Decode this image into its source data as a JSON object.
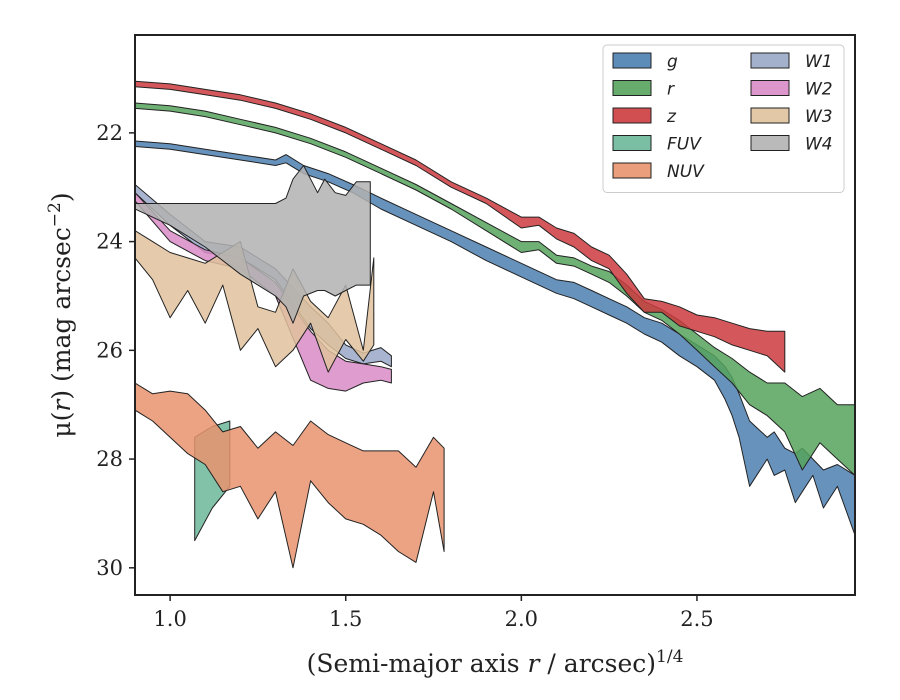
{
  "chart_data": {
    "type": "area",
    "xlabel": {
      "prefix": "(Semi-major axis ",
      "var": "r",
      "suffix": " / arcsec)",
      "sup": "1/4"
    },
    "ylabel": {
      "prefix": "μ(",
      "var": "r",
      "suffix": ") (mag arcsec",
      "sup": "−2",
      "close": ")"
    },
    "xlim": [
      0.9,
      2.95
    ],
    "ylim": [
      30.5,
      20.2
    ],
    "y_inverted": true,
    "xticks": [
      {
        "v": 1.0,
        "label": "1.0"
      },
      {
        "v": 1.5,
        "label": "1.5"
      },
      {
        "v": 2.0,
        "label": "2.0"
      },
      {
        "v": 2.5,
        "label": "2.5"
      }
    ],
    "yticks": [
      {
        "v": 22,
        "label": "22"
      },
      {
        "v": 24,
        "label": "24"
      },
      {
        "v": 26,
        "label": "26"
      },
      {
        "v": 28,
        "label": "28"
      },
      {
        "v": 30,
        "label": "30"
      }
    ],
    "legend_position": "top-right",
    "legend_columns": 2,
    "series": [
      {
        "name": "g",
        "color": "#4c7fb0",
        "x": [
          0.9,
          1.0,
          1.1,
          1.2,
          1.3,
          1.33,
          1.38,
          1.45,
          1.52,
          1.6,
          1.7,
          1.8,
          1.9,
          2.0,
          2.1,
          2.15,
          2.2,
          2.25,
          2.3,
          2.35,
          2.4,
          2.45,
          2.5,
          2.55,
          2.58,
          2.6,
          2.62,
          2.65,
          2.7,
          2.72,
          2.75,
          2.78,
          2.8,
          2.83,
          2.86,
          2.9,
          2.95
        ],
        "top": [
          22.15,
          22.2,
          22.3,
          22.4,
          22.5,
          22.4,
          22.6,
          22.75,
          22.95,
          23.2,
          23.5,
          23.8,
          24.1,
          24.4,
          24.7,
          24.75,
          24.9,
          25.05,
          25.2,
          25.4,
          25.5,
          25.7,
          25.9,
          26.1,
          26.3,
          26.5,
          26.8,
          27.3,
          27.6,
          27.5,
          27.8,
          27.9,
          27.8,
          28.0,
          28.2,
          28.1,
          28.3
        ],
        "bottom": [
          22.25,
          22.3,
          22.4,
          22.5,
          22.6,
          22.55,
          22.75,
          22.9,
          23.1,
          23.4,
          23.7,
          24.0,
          24.35,
          24.65,
          24.95,
          25.05,
          25.2,
          25.35,
          25.5,
          25.7,
          25.85,
          26.1,
          26.3,
          26.55,
          26.9,
          27.2,
          27.6,
          28.5,
          28.0,
          28.3,
          28.2,
          28.8,
          28.6,
          28.3,
          28.9,
          28.5,
          29.4
        ]
      },
      {
        "name": "r",
        "color": "#56a35c",
        "x": [
          0.9,
          1.0,
          1.1,
          1.2,
          1.3,
          1.4,
          1.5,
          1.6,
          1.7,
          1.8,
          1.9,
          2.0,
          2.05,
          2.1,
          2.15,
          2.2,
          2.25,
          2.3,
          2.35,
          2.4,
          2.45,
          2.5,
          2.55,
          2.6,
          2.65,
          2.7,
          2.75,
          2.8,
          2.85,
          2.9,
          2.95
        ],
        "top": [
          21.45,
          21.5,
          21.6,
          21.75,
          21.9,
          22.1,
          22.35,
          22.65,
          22.95,
          23.3,
          23.65,
          24.0,
          24.0,
          24.25,
          24.3,
          24.45,
          24.55,
          24.8,
          25.1,
          25.25,
          25.45,
          25.7,
          25.95,
          26.15,
          26.4,
          26.6,
          26.6,
          26.85,
          26.7,
          27.0,
          27.0
        ],
        "bottom": [
          21.55,
          21.6,
          21.7,
          21.85,
          22.0,
          22.2,
          22.45,
          22.75,
          23.05,
          23.4,
          23.8,
          24.2,
          24.15,
          24.4,
          24.45,
          24.6,
          24.75,
          25.0,
          25.3,
          25.45,
          25.7,
          26.0,
          26.3,
          26.6,
          27.0,
          27.2,
          27.5,
          28.2,
          27.7,
          28.0,
          28.3
        ]
      },
      {
        "name": "z",
        "color": "#cc3b3e",
        "x": [
          0.9,
          1.0,
          1.1,
          1.2,
          1.3,
          1.4,
          1.5,
          1.6,
          1.7,
          1.8,
          1.9,
          2.0,
          2.05,
          2.1,
          2.15,
          2.2,
          2.25,
          2.3,
          2.35,
          2.4,
          2.45,
          2.5,
          2.55,
          2.6,
          2.65,
          2.7,
          2.75
        ],
        "top": [
          21.05,
          21.1,
          21.2,
          21.3,
          21.45,
          21.65,
          21.9,
          22.2,
          22.5,
          22.9,
          23.2,
          23.55,
          23.55,
          23.75,
          23.85,
          24.1,
          24.25,
          24.6,
          25.05,
          25.1,
          25.2,
          25.35,
          25.4,
          25.5,
          25.6,
          25.65,
          25.65
        ],
        "bottom": [
          21.15,
          21.2,
          21.3,
          21.4,
          21.55,
          21.75,
          22.0,
          22.3,
          22.6,
          23.0,
          23.3,
          23.75,
          23.7,
          23.95,
          24.1,
          24.35,
          24.5,
          24.95,
          25.3,
          25.3,
          25.55,
          25.65,
          25.75,
          25.9,
          26.0,
          26.1,
          26.4
        ]
      },
      {
        "name": "FUV",
        "color": "#6cb79a",
        "x": [
          1.07,
          1.12,
          1.17
        ],
        "top": [
          27.6,
          27.4,
          27.3
        ],
        "bottom": [
          29.5,
          28.9,
          28.5
        ]
      },
      {
        "name": "NUV",
        "color": "#e8936e",
        "x": [
          0.9,
          0.95,
          1.0,
          1.05,
          1.1,
          1.15,
          1.2,
          1.25,
          1.3,
          1.35,
          1.4,
          1.45,
          1.5,
          1.55,
          1.6,
          1.65,
          1.7,
          1.75,
          1.78
        ],
        "top": [
          26.6,
          26.8,
          26.75,
          26.8,
          27.1,
          27.5,
          27.4,
          27.8,
          27.5,
          27.75,
          27.3,
          27.55,
          27.7,
          27.85,
          27.85,
          27.85,
          28.15,
          27.6,
          27.8
        ],
        "bottom": [
          27.1,
          27.3,
          27.6,
          27.9,
          28.1,
          28.6,
          28.5,
          29.1,
          28.6,
          30.0,
          28.4,
          28.8,
          29.1,
          29.2,
          29.4,
          29.7,
          29.9,
          28.6,
          29.7
        ]
      },
      {
        "name": "W1",
        "color": "#9aa8c8",
        "x": [
          0.9,
          1.0,
          1.1,
          1.2,
          1.3,
          1.4,
          1.45,
          1.5,
          1.55,
          1.6,
          1.63
        ],
        "top": [
          22.95,
          23.5,
          24.0,
          24.1,
          24.5,
          25.2,
          25.5,
          25.9,
          26.05,
          25.95,
          26.1
        ],
        "bottom": [
          23.1,
          23.7,
          24.2,
          24.3,
          24.7,
          25.6,
          25.9,
          26.15,
          26.25,
          26.2,
          26.3
        ]
      },
      {
        "name": "W2",
        "color": "#d98bc7",
        "x": [
          0.9,
          1.0,
          1.1,
          1.2,
          1.3,
          1.4,
          1.45,
          1.5,
          1.55,
          1.6,
          1.63
        ],
        "top": [
          23.1,
          23.8,
          24.15,
          24.3,
          24.75,
          25.65,
          26.0,
          26.2,
          26.25,
          26.3,
          26.35
        ],
        "bottom": [
          23.25,
          24.0,
          24.35,
          24.5,
          25.0,
          26.55,
          26.7,
          26.75,
          26.6,
          26.55,
          26.6
        ]
      },
      {
        "name": "W3",
        "color": "#e0c29d",
        "x": [
          0.9,
          0.95,
          1.0,
          1.05,
          1.1,
          1.15,
          1.2,
          1.25,
          1.3,
          1.35,
          1.4,
          1.45,
          1.5,
          1.55,
          1.58
        ],
        "top": [
          23.8,
          24.0,
          24.2,
          24.3,
          24.4,
          24.2,
          24.0,
          25.2,
          25.3,
          24.5,
          25.1,
          25.4,
          24.8,
          26.0,
          24.3
        ],
        "bottom": [
          24.3,
          24.7,
          25.4,
          24.9,
          25.5,
          24.8,
          26.0,
          25.6,
          26.3,
          26.0,
          25.5,
          26.4,
          25.8,
          26.2,
          25.9
        ]
      },
      {
        "name": "W4",
        "color": "#b2b2b2",
        "x": [
          0.9,
          1.0,
          1.1,
          1.2,
          1.3,
          1.33,
          1.35,
          1.38,
          1.42,
          1.44,
          1.47,
          1.5,
          1.53,
          1.57
        ],
        "top": [
          23.3,
          23.3,
          23.3,
          23.3,
          23.3,
          23.2,
          22.85,
          22.6,
          23.1,
          22.85,
          23.1,
          23.15,
          22.9,
          22.9
        ],
        "bottom": [
          23.4,
          23.7,
          24.1,
          24.6,
          25.0,
          25.2,
          25.5,
          25.0,
          24.9,
          24.9,
          25.0,
          24.9,
          24.8,
          24.8
        ]
      }
    ]
  }
}
